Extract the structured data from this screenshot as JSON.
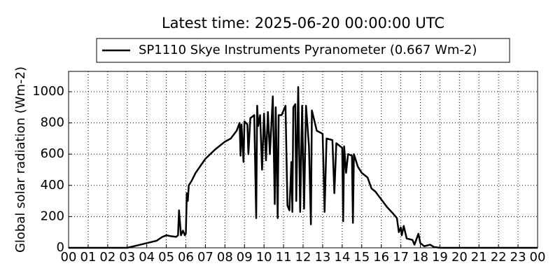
{
  "chart_data": {
    "type": "line",
    "title": "Latest time: 2025-06-20 00:00:00 UTC",
    "ylabel": "Global solar radiation (Wm-2)",
    "grid": true,
    "xlim": [
      0,
      24
    ],
    "ylim": [
      0,
      1130
    ],
    "yticks": [
      0,
      200,
      400,
      600,
      800,
      1000
    ],
    "xticks": [
      {
        "value": 0,
        "label": "00"
      },
      {
        "value": 1,
        "label": "01"
      },
      {
        "value": 2,
        "label": "02"
      },
      {
        "value": 3,
        "label": "03"
      },
      {
        "value": 4,
        "label": "04"
      },
      {
        "value": 5,
        "label": "05"
      },
      {
        "value": 6,
        "label": "06"
      },
      {
        "value": 7,
        "label": "07"
      },
      {
        "value": 8,
        "label": "08"
      },
      {
        "value": 9,
        "label": "09"
      },
      {
        "value": 10,
        "label": "10"
      },
      {
        "value": 11,
        "label": "11"
      },
      {
        "value": 12,
        "label": "12"
      },
      {
        "value": 13,
        "label": "13"
      },
      {
        "value": 14,
        "label": "14"
      },
      {
        "value": 15,
        "label": "15"
      },
      {
        "value": 16,
        "label": "16"
      },
      {
        "value": 17,
        "label": "17"
      },
      {
        "value": 18,
        "label": "18"
      },
      {
        "value": 19,
        "label": "19"
      },
      {
        "value": 20,
        "label": "20"
      },
      {
        "value": 21,
        "label": "21"
      },
      {
        "value": 22,
        "label": "22"
      },
      {
        "value": 23,
        "label": "23"
      },
      {
        "value": 24,
        "label": "00"
      }
    ],
    "x": [
      0,
      3.0,
      3.5,
      4.0,
      4.5,
      4.8,
      5.0,
      5.2,
      5.5,
      5.6,
      5.65,
      5.75,
      5.85,
      5.95,
      6.0,
      6.05,
      6.1,
      6.15,
      6.3,
      6.5,
      7.0,
      7.5,
      8.0,
      8.3,
      8.6,
      8.75,
      8.8,
      8.85,
      8.95,
      9.0,
      9.15,
      9.2,
      9.3,
      9.5,
      9.6,
      9.65,
      9.7,
      9.8,
      9.9,
      10.0,
      10.1,
      10.2,
      10.3,
      10.45,
      10.55,
      10.6,
      10.7,
      10.75,
      10.9,
      11.1,
      11.2,
      11.3,
      11.4,
      11.45,
      11.5,
      11.6,
      11.65,
      11.75,
      11.85,
      11.95,
      12.05,
      12.15,
      12.3,
      12.4,
      12.45,
      12.7,
      13.0,
      13.1,
      13.2,
      13.5,
      13.6,
      13.7,
      14.0,
      14.05,
      14.1,
      14.2,
      14.3,
      14.5,
      14.55,
      14.6,
      14.8,
      15.0,
      15.3,
      15.5,
      15.7,
      16.0,
      16.3,
      16.6,
      16.8,
      16.9,
      17.0,
      17.05,
      17.15,
      17.3,
      17.6,
      17.7,
      17.9,
      18.0,
      18.2,
      18.5,
      18.7,
      19.0,
      24
    ],
    "series": [
      {
        "name": "SP1110 Skye Instruments Pyranometer (0.667 Wm-2)",
        "color": "#000000",
        "values": [
          0,
          0,
          15,
          30,
          45,
          70,
          80,
          75,
          70,
          80,
          240,
          80,
          110,
          80,
          90,
          350,
          300,
          400,
          430,
          480,
          570,
          630,
          680,
          700,
          750,
          800,
          590,
          790,
          550,
          810,
          790,
          600,
          830,
          850,
          190,
          910,
          780,
          850,
          500,
          860,
          560,
          870,
          600,
          970,
          280,
          900,
          190,
          850,
          850,
          910,
          270,
          240,
          550,
          230,
          900,
          920,
          300,
          1030,
          230,
          910,
          250,
          910,
          650,
          150,
          880,
          750,
          730,
          230,
          700,
          690,
          350,
          670,
          640,
          170,
          650,
          480,
          600,
          590,
          160,
          600,
          520,
          480,
          450,
          380,
          360,
          310,
          260,
          220,
          190,
          100,
          130,
          80,
          140,
          60,
          50,
          20,
          90,
          30,
          10,
          20,
          5,
          0,
          0
        ]
      }
    ]
  }
}
